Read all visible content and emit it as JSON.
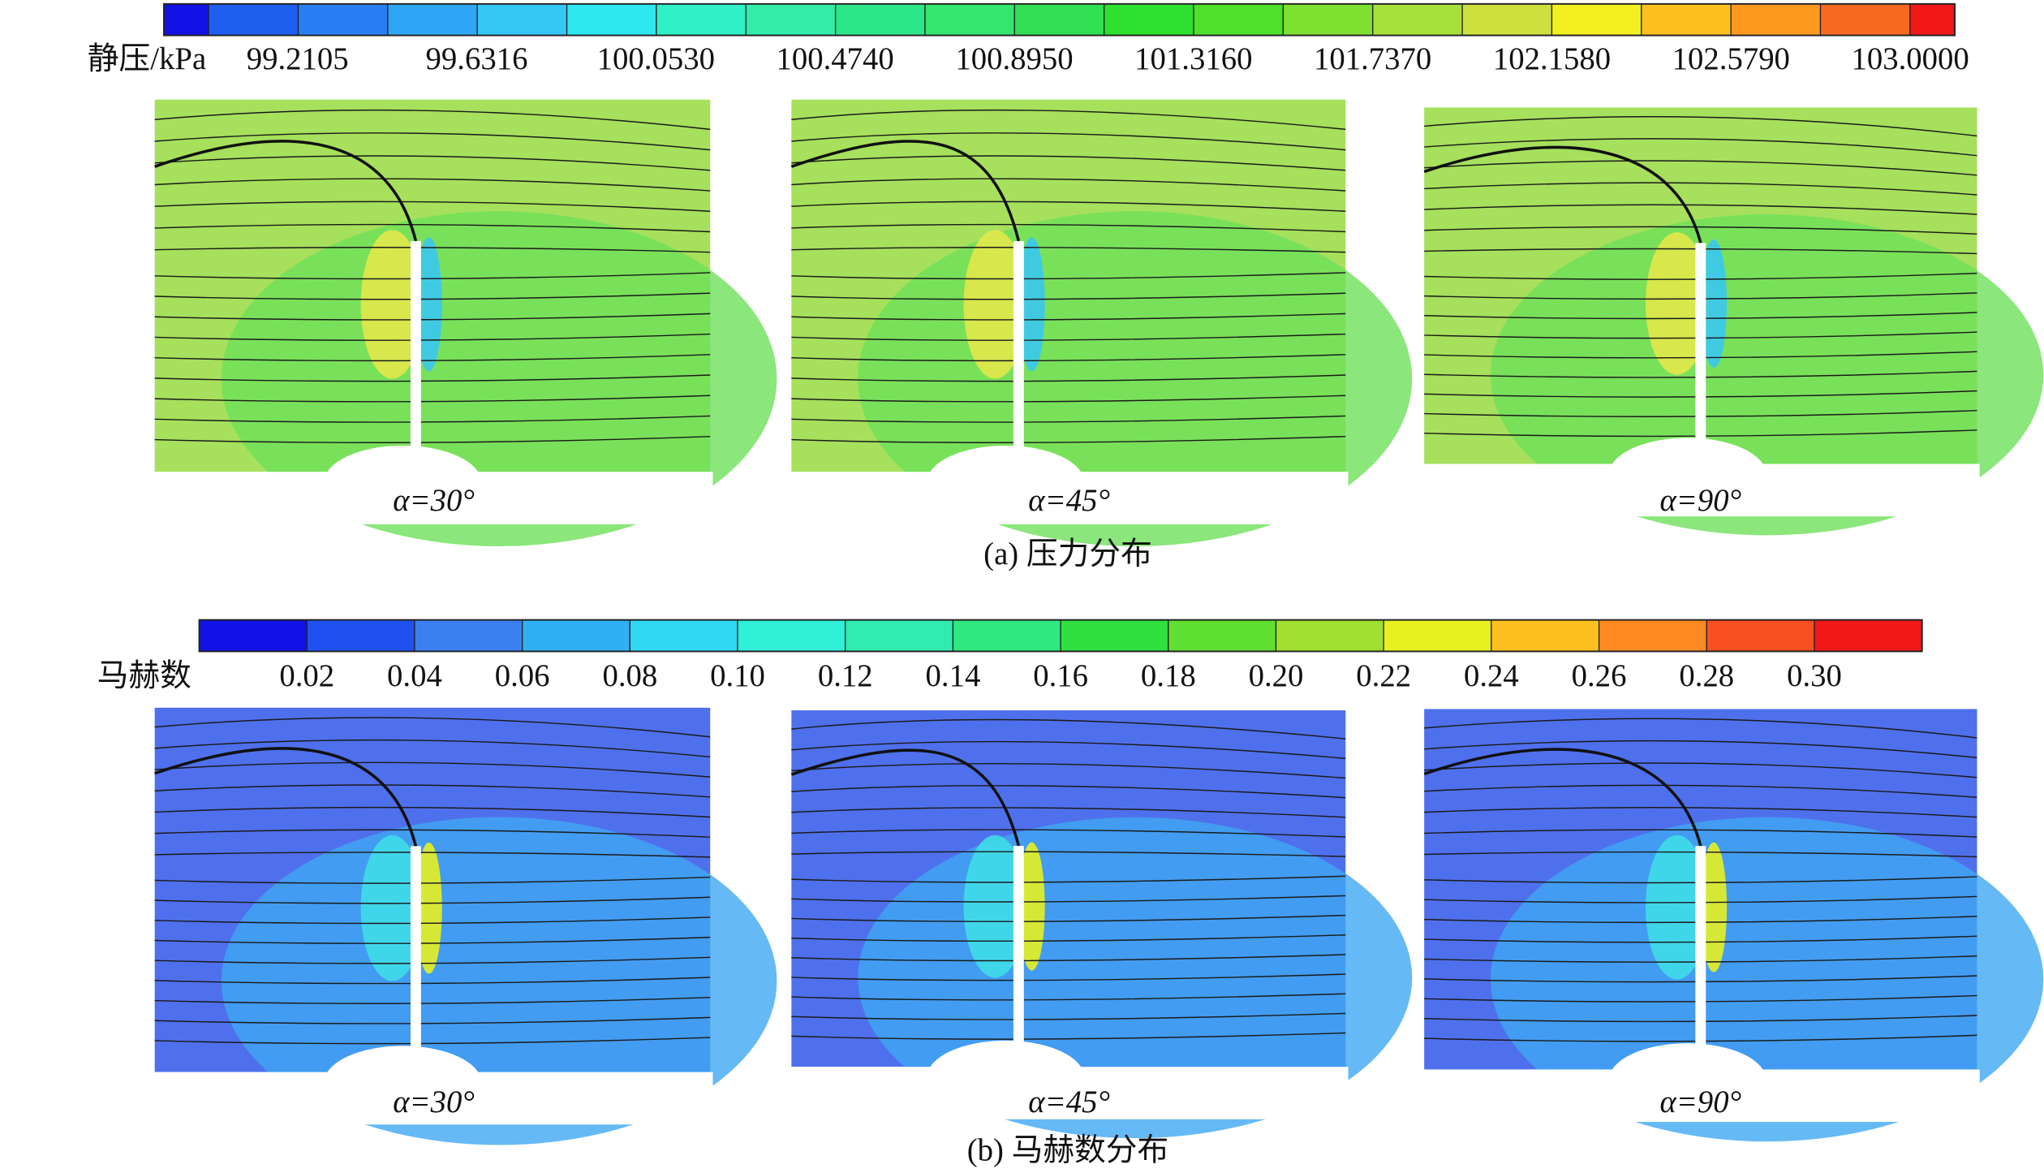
{
  "colorbars": [
    {
      "label": "静压/kPa",
      "ticks": [
        "99.2105",
        "99.6316",
        "100.0530",
        "100.4740",
        "100.8950",
        "101.3160",
        "101.7370",
        "102.1580",
        "102.5790",
        "103.0000"
      ],
      "colors": [
        "#1212e6",
        "#1f5ff0",
        "#2a7ef5",
        "#2ea6f7",
        "#36c8f5",
        "#2ee8f0",
        "#30f0c8",
        "#32eca8",
        "#2ee68a",
        "#34e670",
        "#30e052",
        "#2ee030",
        "#4ee02a",
        "#7ee030",
        "#a8e03a",
        "#cce03e",
        "#f4f020",
        "#fcc020",
        "#fc9a20",
        "#f86a20",
        "#f01818"
      ]
    },
    {
      "label": "马赫数",
      "ticks": [
        "0.02",
        "0.04",
        "0.06",
        "0.08",
        "0.10",
        "0.12",
        "0.14",
        "0.16",
        "0.18",
        "0.20",
        "0.22",
        "0.24",
        "0.26",
        "0.28",
        "0.30"
      ],
      "colors": [
        "#1212e6",
        "#2050f0",
        "#3a80f0",
        "#30b0f4",
        "#30d8f4",
        "#30f0d8",
        "#30ecb0",
        "#30e880",
        "#30e040",
        "#60e030",
        "#a0e030",
        "#e8f020",
        "#fcc020",
        "#fc8a20",
        "#f85020",
        "#f01818"
      ]
    }
  ],
  "figures": [
    {
      "caption": "(a) 压力分布",
      "panels": [
        "α=30°",
        "α=45°",
        "α=90°"
      ]
    },
    {
      "caption": "(b) 马赫数分布",
      "panels": [
        "α=30°",
        "α=45°",
        "α=90°"
      ]
    }
  ]
}
